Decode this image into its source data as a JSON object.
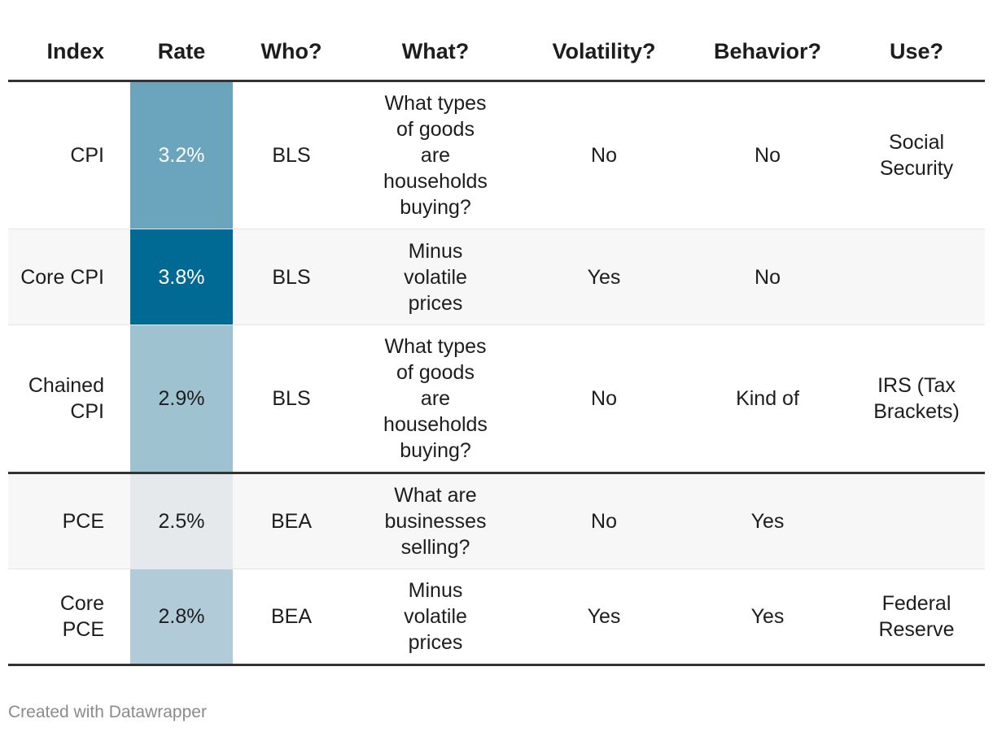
{
  "chart_data": {
    "type": "table",
    "columns": [
      "Index",
      "Rate",
      "Who?",
      "What?",
      "Volatility?",
      "Behavior?",
      "Use?"
    ],
    "rows": [
      {
        "index": "CPI",
        "rate": "3.2%",
        "rate_value": 3.2,
        "who": "BLS",
        "what": "What types of goods are households buying?",
        "volatility": "No",
        "behavior": "No",
        "use": "Social Security"
      },
      {
        "index": "Core CPI",
        "rate": "3.8%",
        "rate_value": 3.8,
        "who": "BLS",
        "what": "Minus volatile prices",
        "volatility": "Yes",
        "behavior": "No",
        "use": ""
      },
      {
        "index": "Chained CPI",
        "rate": "2.9%",
        "rate_value": 2.9,
        "who": "BLS",
        "what": "What types of goods are households buying?",
        "volatility": "No",
        "behavior": "Kind of",
        "use": "IRS (Tax Brackets)"
      },
      {
        "index": "PCE",
        "rate": "2.5%",
        "rate_value": 2.5,
        "who": "BEA",
        "what": "What are businesses selling?",
        "volatility": "No",
        "behavior": "Yes",
        "use": ""
      },
      {
        "index": "Core PCE",
        "rate": "2.8%",
        "rate_value": 2.8,
        "who": "BEA",
        "what": "Minus volatile prices",
        "volatility": "Yes",
        "behavior": "Yes",
        "use": "Federal Reserve"
      }
    ],
    "rate_color_scale": {
      "min_color": "#e6e9ec",
      "max_color": "#006994"
    }
  },
  "footer": {
    "credit": "Created with Datawrapper"
  }
}
